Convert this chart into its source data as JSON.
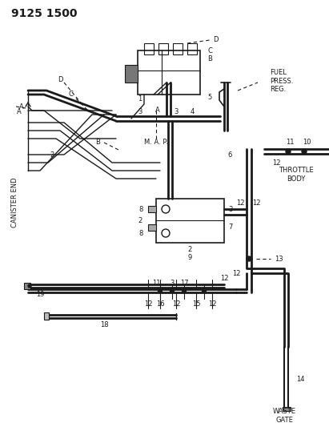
{
  "bg_color": "#ffffff",
  "line_color": "#1a1a1a",
  "title": "9125 1500",
  "labels": {
    "fuel_press_reg": "FUEL\nPRESS.\nREG.",
    "throttle_body": "THROTTLE\nBODY",
    "canister_end": "CANISTER END",
    "waste_gate": "WASTE\nGATE",
    "map": "M. A. P."
  }
}
